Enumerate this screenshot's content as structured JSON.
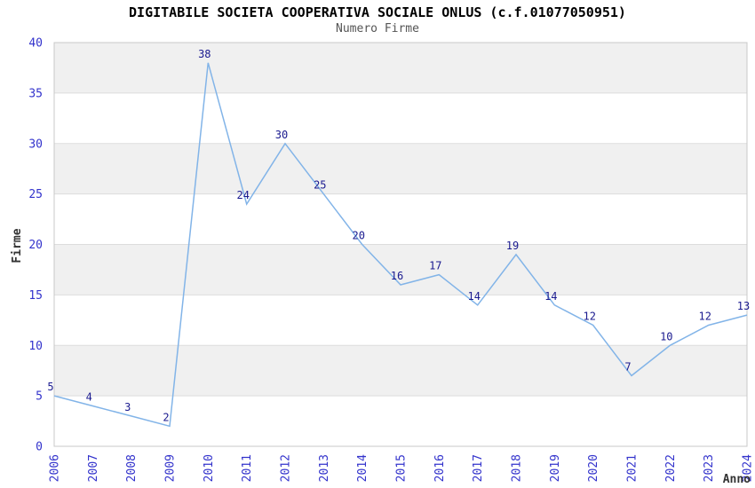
{
  "chart_data": {
    "type": "line",
    "title": "DIGITABILE SOCIETA COOPERATIVA SOCIALE ONLUS (c.f.01077050951)",
    "subtitle": "Numero Firme",
    "xlabel": "Anno",
    "ylabel": "Firme",
    "x": [
      2006,
      2007,
      2008,
      2009,
      2010,
      2011,
      2012,
      2013,
      2014,
      2015,
      2016,
      2017,
      2018,
      2019,
      2020,
      2021,
      2022,
      2023,
      2024
    ],
    "series": [
      {
        "name": "Numero Firme",
        "values": [
          5,
          4,
          3,
          2,
          38,
          24,
          30,
          25,
          20,
          16,
          17,
          14,
          19,
          14,
          12,
          7,
          10,
          12,
          13
        ]
      }
    ],
    "ylim": [
      0,
      40
    ],
    "ytick_step": 5,
    "yticks": [
      0,
      5,
      10,
      15,
      20,
      25,
      30,
      35,
      40
    ],
    "grid": true,
    "legend": false,
    "point_labels": true,
    "x_tick_rotation": 90,
    "colors": {
      "line": "#82B4E8",
      "band": "#F0F0F0",
      "grid": "#DDDDDD",
      "border": "#C8C8C8",
      "tick_label": "#3333CC",
      "point_label": "#1A1A8F",
      "axis_label": "#333333",
      "title": "#000000",
      "subtitle": "#555555",
      "background": "#FFFFFF"
    }
  }
}
